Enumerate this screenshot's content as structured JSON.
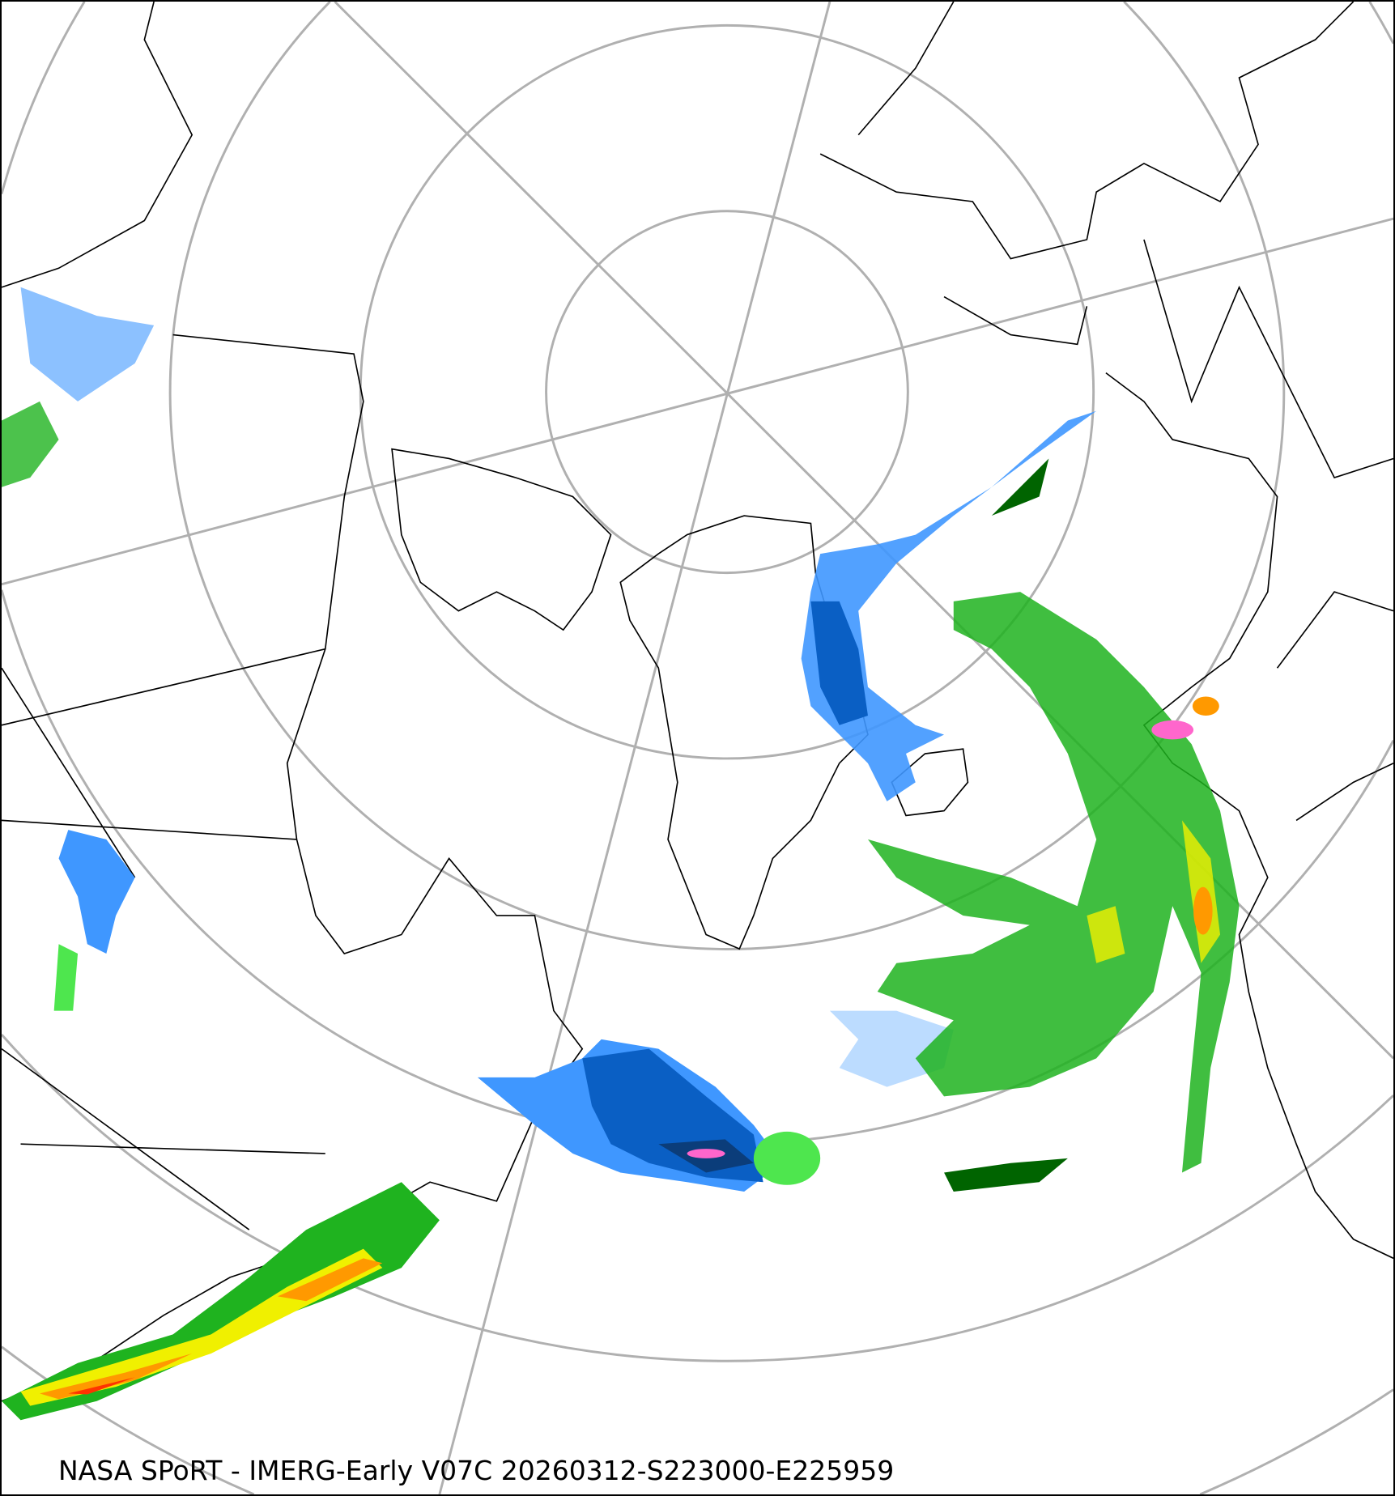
{
  "caption": "NASA SPoRT - IMERG-Early V07C 20260312-S223000-E225959",
  "colors": {
    "light_blue": "#bcdcff",
    "blue": "#3f97ff",
    "dark_blue": "#0a5fc4",
    "navy": "#0b3d7a",
    "dark_green": "#006400",
    "green": "#1fb31f",
    "light_green": "#4ee64e",
    "yellow": "#f0f000",
    "orange": "#ff9900",
    "red": "#ff3300",
    "pink": "#ff66cc",
    "graticule": "#b0b0b0",
    "coastline": "#000000"
  }
}
